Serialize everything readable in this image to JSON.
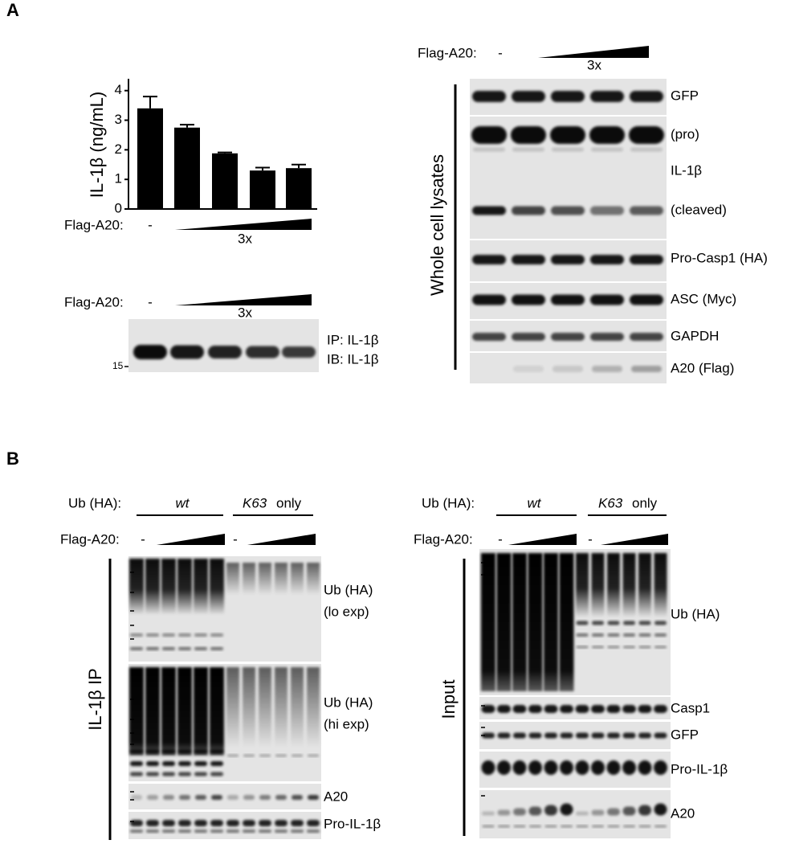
{
  "panel_a": {
    "label": "A",
    "bar_treatment": {
      "label": "Flag-A20:",
      "control": "-",
      "dose": "3x"
    },
    "ip_blot": {
      "treatment": {
        "label": "Flag-A20:",
        "control": "-",
        "dose": "3x"
      },
      "labels": [
        "IP: IL-1β",
        "IB: IL-1β"
      ],
      "marker": "15"
    },
    "lysate_blot": {
      "treatment": {
        "label": "Flag-A20:",
        "control": "-",
        "dose": "3x"
      },
      "side_label": "Whole cell lysates",
      "labels": [
        "GFP",
        "(pro)",
        "IL-1β",
        "(cleaved)",
        "Pro-Casp1 (HA)",
        "ASC (Myc)",
        "GAPDH",
        "A20 (Flag)"
      ]
    }
  },
  "chart_data": {
    "type": "bar",
    "y_label": "IL-1β (ng/mL)",
    "categories": [
      null,
      null,
      null,
      null,
      null
    ],
    "values": [
      3.4,
      2.75,
      1.88,
      1.3,
      1.38
    ],
    "errors": [
      0.4,
      0.1,
      0.03,
      0.1,
      0.12
    ],
    "color": "#000000",
    "ylim": [
      0,
      4.4
    ],
    "yticks": [
      0,
      1,
      2,
      3,
      4
    ]
  },
  "panel_b": {
    "label": "B",
    "ip_blot": {
      "ub_label": "Ub (HA):",
      "wt": "wt",
      "k63": "K63",
      "only": "only",
      "treatment": {
        "label": "Flag-A20:",
        "control_wt": "-",
        "control_k63": "-"
      },
      "side_label": "IL-1β IP",
      "labels": [
        "Ub (HA)",
        "(lo exp)",
        "Ub (HA)",
        "(hi exp)",
        "A20",
        "Pro-IL-1β"
      ]
    },
    "input_blot": {
      "ub_label": "Ub (HA):",
      "wt": "wt",
      "k63": "K63",
      "only": "only",
      "treatment": {
        "label": "Flag-A20:",
        "control_wt": "-",
        "control_k63": "-"
      },
      "side_label": "Input",
      "labels": [
        "Ub (HA)",
        "Casp1",
        "GFP",
        "Pro-IL-1β",
        "A20"
      ]
    }
  }
}
